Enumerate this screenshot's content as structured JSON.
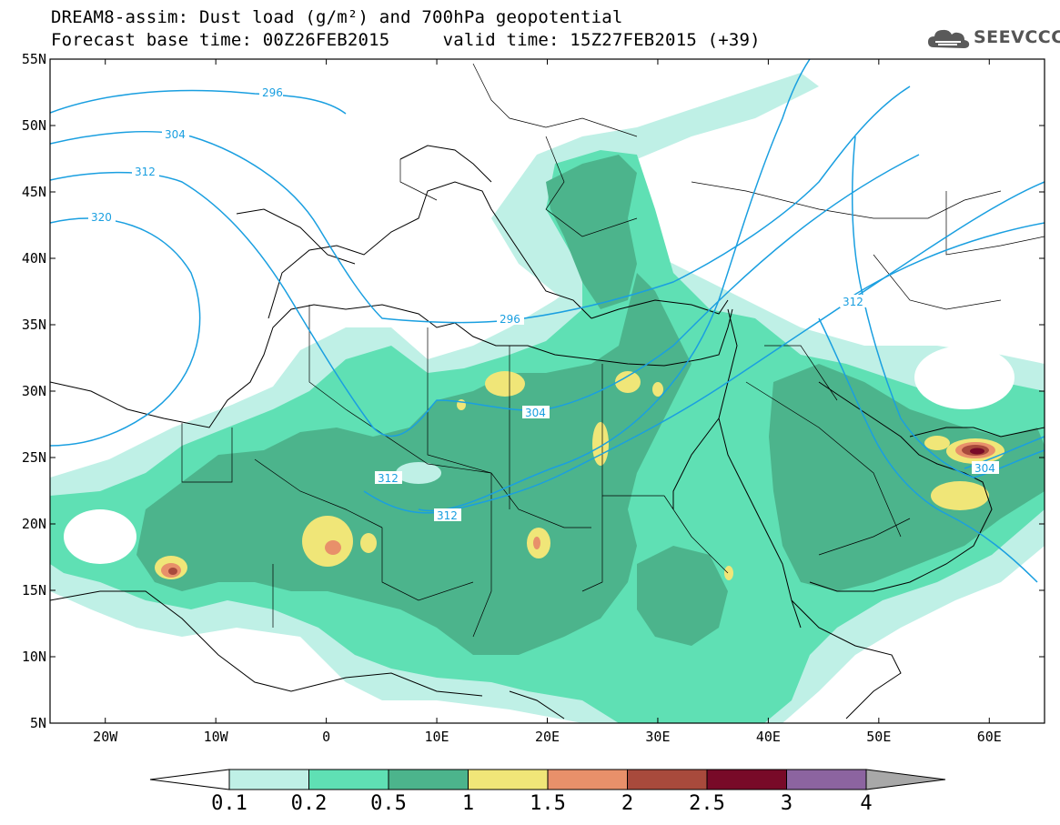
{
  "header": {
    "title_line_1": "DREAM8-assim: Dust load (g/m²) and 700hPa geopotential",
    "title_line_2": "Forecast base time: 00Z26FEB2015     valid time: 15Z27FEB2015 (+39)",
    "logo_text": "SEEVCCC",
    "logo_icon": "cloud-icon"
  },
  "map": {
    "lon_range": [
      -25,
      65
    ],
    "lat_range": [
      5,
      55
    ],
    "lat_ticks": [
      "55N",
      "50N",
      "45N",
      "40N",
      "35N",
      "30N",
      "25N",
      "20N",
      "15N",
      "10N",
      "5N"
    ],
    "lon_ticks": [
      "20W",
      "10W",
      "0",
      "10E",
      "20E",
      "30E",
      "40E",
      "50E",
      "60E"
    ],
    "contour_color": "#1a9fe0",
    "contour_labels": [
      "296",
      "304",
      "312",
      "320",
      "296",
      "304",
      "312",
      "312",
      "312",
      "304"
    ]
  },
  "colorbar": {
    "labels": [
      "0.1",
      "0.2",
      "0.5",
      "1",
      "1.5",
      "2",
      "2.5",
      "3",
      "4"
    ],
    "colors": [
      "#ffffff",
      "#bff0e6",
      "#5fe0b4",
      "#4cb48c",
      "#f0e678",
      "#e8906a",
      "#a84a3c",
      "#780a28",
      "#8c64a0",
      "#a8a8a8"
    ]
  }
}
